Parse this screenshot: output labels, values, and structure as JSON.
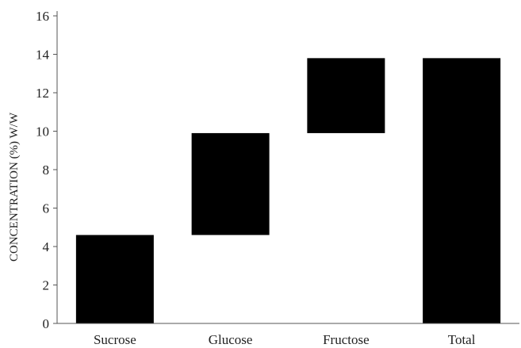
{
  "chart_data": {
    "type": "bar",
    "subtype": "waterfall",
    "categories": [
      "Sucrose",
      "Glucose",
      "Fructose",
      "Total"
    ],
    "bars": [
      {
        "category": "Sucrose",
        "start": 0,
        "end": 4.6
      },
      {
        "category": "Glucose",
        "start": 4.6,
        "end": 9.9
      },
      {
        "category": "Fructose",
        "start": 9.9,
        "end": 13.8
      },
      {
        "category": "Total",
        "start": 0,
        "end": 13.8
      }
    ],
    "values": [
      4.6,
      5.3,
      3.9,
      13.8
    ],
    "ylabel": "CONCENTRATION  (%) W/W",
    "xlabel": "",
    "title": "",
    "ylim": [
      0,
      16
    ],
    "yticks": [
      0,
      2,
      4,
      6,
      8,
      10,
      12,
      14,
      16
    ],
    "grid": false,
    "legend": "none",
    "colors": {
      "bar": "#000000",
      "axis": "#555555",
      "text": "#222222"
    }
  }
}
